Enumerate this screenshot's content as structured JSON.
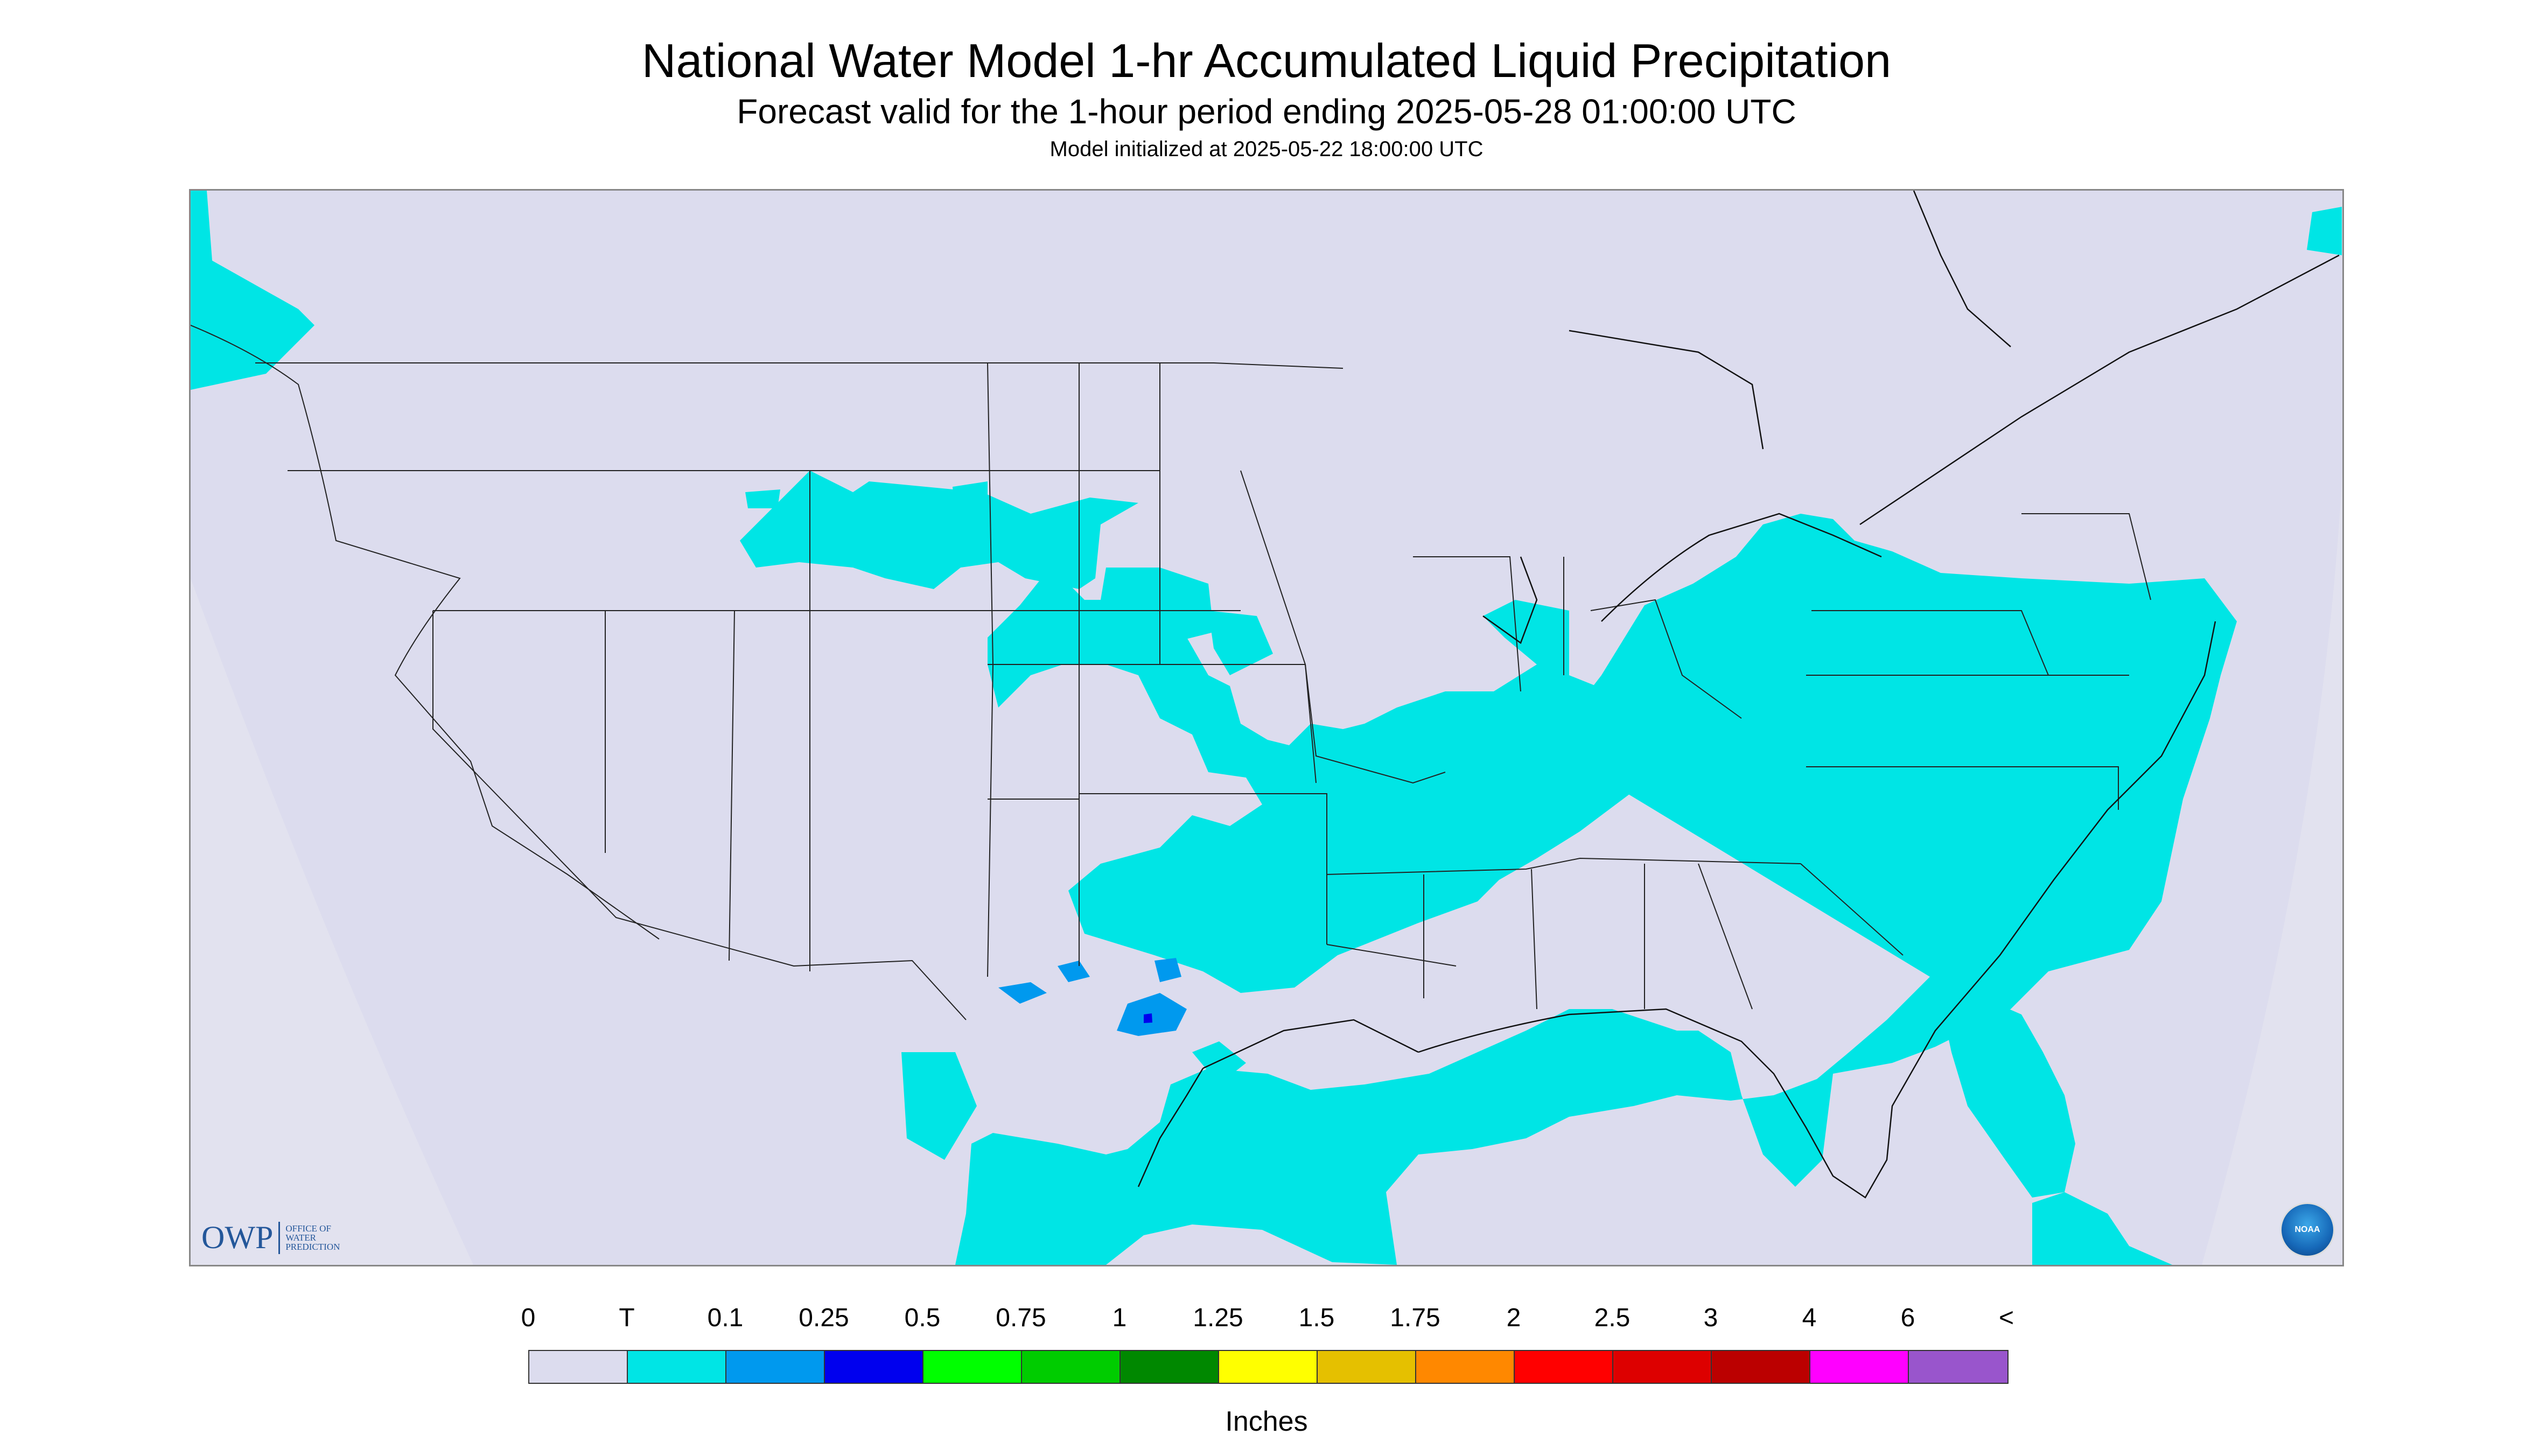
{
  "title": "National Water Model 1-hr Accumulated Liquid Precipitation",
  "subtitle": "Forecast valid for the 1-hour period ending 2025-05-28 01:00:00 UTC",
  "init_line": "Model initialized at 2025-05-22 18:00:00 UTC",
  "owp_logo": {
    "mark": "OWP",
    "text": "OFFICE OF WATER PREDICTION"
  },
  "noaa_logo": "NOAA",
  "legend": {
    "labels": [
      "0",
      "T",
      "0.1",
      "0.25",
      "0.5",
      "0.75",
      "1",
      "1.25",
      "1.5",
      "1.75",
      "2",
      "2.5",
      "3",
      "4",
      "6",
      "<"
    ],
    "colors": [
      "#dcdcee",
      "#00e5e5",
      "#0099ee",
      "#0000ee",
      "#00ff00",
      "#00cc00",
      "#008800",
      "#ffff00",
      "#e5c000",
      "#ff8800",
      "#ff0000",
      "#dd0000",
      "#bb0000",
      "#ff00ff",
      "#9955cc"
    ],
    "units": "Inches"
  },
  "colors": {
    "background_zero": "#dcdcee",
    "trace": "#00e5e5",
    "light": "#0099ee",
    "medium": "#0000ee",
    "outside_domain": "#dcdcee"
  }
}
